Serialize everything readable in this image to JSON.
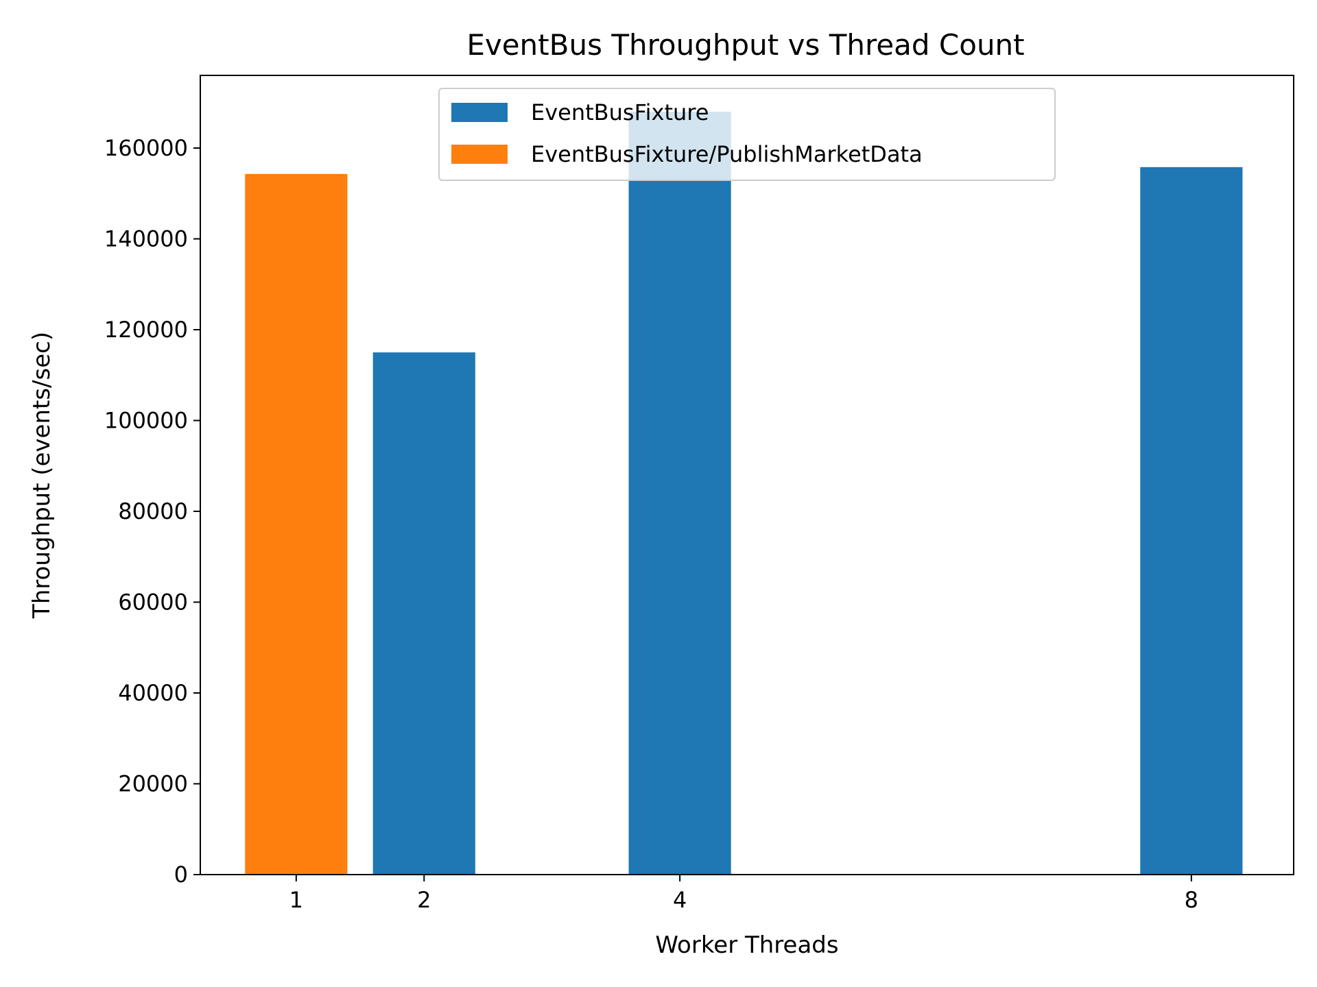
{
  "chart_data": {
    "type": "bar",
    "title": "EventBus Throughput vs Thread Count",
    "xlabel": "Worker Threads",
    "ylabel": "Throughput (events/sec)",
    "xlim": [
      0.25,
      8.8
    ],
    "ylim": [
      0,
      176000
    ],
    "xticks": [
      1,
      2,
      4,
      8
    ],
    "yticks": [
      0,
      20000,
      40000,
      60000,
      80000,
      100000,
      120000,
      140000,
      160000
    ],
    "bar_width": 0.8,
    "grid": false,
    "legend_position": "top-center",
    "series": [
      {
        "name": "EventBusFixture",
        "color": "#1f77b4",
        "points": [
          {
            "x": 2,
            "y": 115000
          },
          {
            "x": 4,
            "y": 168000
          },
          {
            "x": 8,
            "y": 155800
          }
        ]
      },
      {
        "name": "EventBusFixture/PublishMarketData",
        "color": "#ff7f0e",
        "points": [
          {
            "x": 1,
            "y": 154300
          }
        ]
      }
    ]
  }
}
